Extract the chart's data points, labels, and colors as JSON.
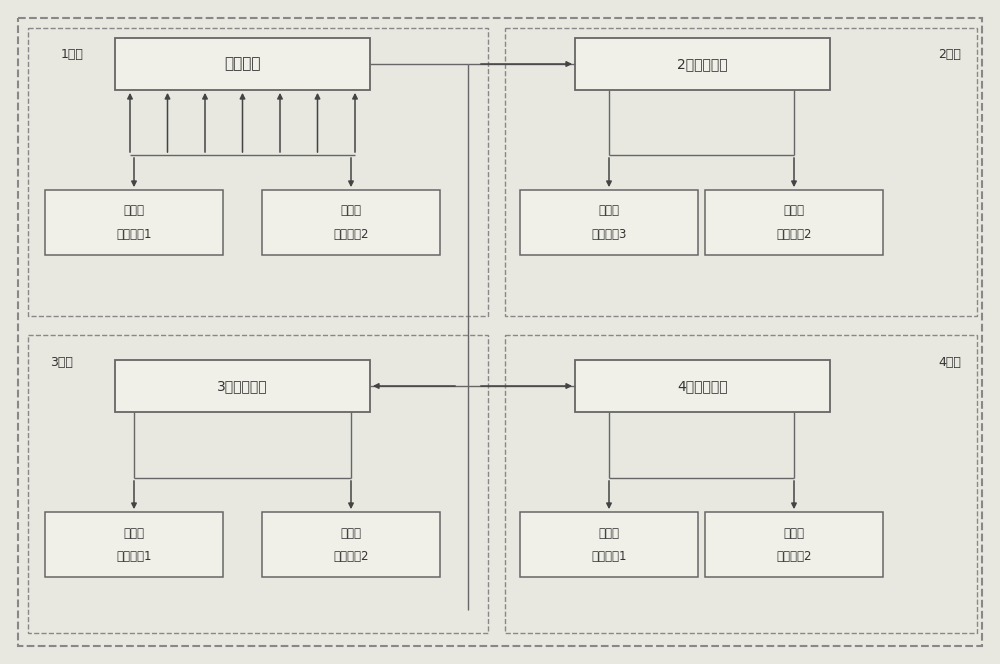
{
  "bg_color": "#e8e8e0",
  "outer_border_color": "#888888",
  "dashed_color": "#888888",
  "box_face": "#f0f0e8",
  "box_edge": "#666666",
  "arrow_color": "#444444",
  "line_color": "#666666",
  "text_color": "#333333",
  "master_label": "总控制器",
  "car1_label": "1号车",
  "car2_label": "2号车",
  "car3_label": "3号车",
  "car4_label": "4号车",
  "car2_ctrl_label": "2号车控制器",
  "car3_ctrl_label": "3号车控制器",
  "car4_ctrl_label": "4号车控制器",
  "unit1_line1": "换流器",
  "unit1_line2": "控制单元1",
  "unit2_line1": "换流器",
  "unit2_line2": "控制单元2",
  "unit3_line1": "换流器",
  "unit3_line2": "控制单元3",
  "unit4_line1": "换流器",
  "unit4_line2": "控制单元2"
}
